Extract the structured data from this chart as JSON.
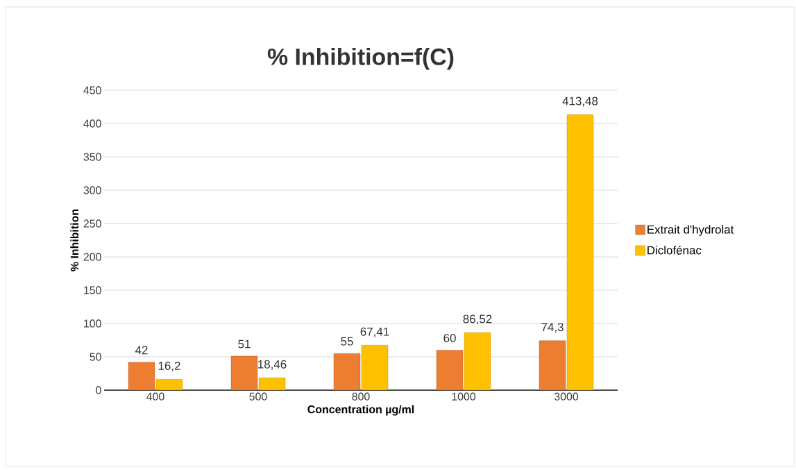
{
  "chart_data": {
    "type": "bar",
    "title": "% Inhibition=f(C)",
    "xlabel": "Concentration µg/ml",
    "ylabel": "% Inhibition",
    "categories": [
      "400",
      "500",
      "800",
      "1000",
      "3000"
    ],
    "series": [
      {
        "name": "Extrait d'hydrolat",
        "color": "#ed7d31",
        "values": [
          42,
          51,
          55,
          60,
          74.3
        ],
        "value_labels": [
          "42",
          "51",
          "55",
          "60",
          "74,3"
        ]
      },
      {
        "name": "Diclofénac",
        "color": "#ffc000",
        "values": [
          16.2,
          18.46,
          67.41,
          86.52,
          413.48
        ],
        "value_labels": [
          "16,2",
          "18,46",
          "67,41",
          "86,52",
          "413,48"
        ]
      }
    ],
    "ylim": [
      0,
      450
    ],
    "yticks": [
      0,
      50,
      100,
      150,
      200,
      250,
      300,
      350,
      400,
      450
    ],
    "grid": "y",
    "legend": "right"
  }
}
